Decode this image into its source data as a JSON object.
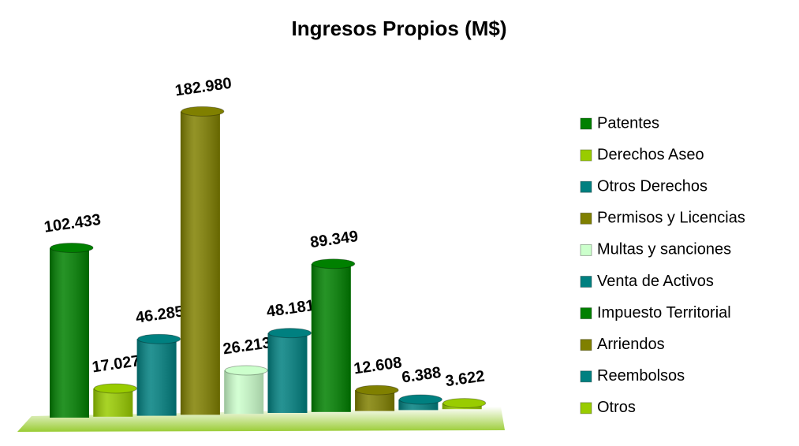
{
  "chart_data": {
    "type": "bar3d",
    "title": "Ingresos Propios (M$)",
    "categories": [
      "Patentes",
      "Derechos Aseo",
      "Otros Derechos",
      "Permisos y Licencias",
      "Multas y sanciones",
      "Venta de Activos",
      "Impuesto Territorial",
      "Arriendos",
      "Reembolsos",
      "Otros"
    ],
    "values": [
      102433,
      17027,
      46285,
      182980,
      26213,
      48181,
      89349,
      12608,
      6388,
      3622
    ],
    "value_labels": [
      "102.433",
      "17.027",
      "46.285",
      "182.980",
      "26.213",
      "48.181",
      "89.349",
      "12.608",
      "6.388",
      "3.622"
    ],
    "colors": [
      "#008000",
      "#99cc00",
      "#008080",
      "#808000",
      "#ccffcc",
      "#008080",
      "#008000",
      "#808000",
      "#008080",
      "#99cc00"
    ],
    "legend": "right"
  }
}
